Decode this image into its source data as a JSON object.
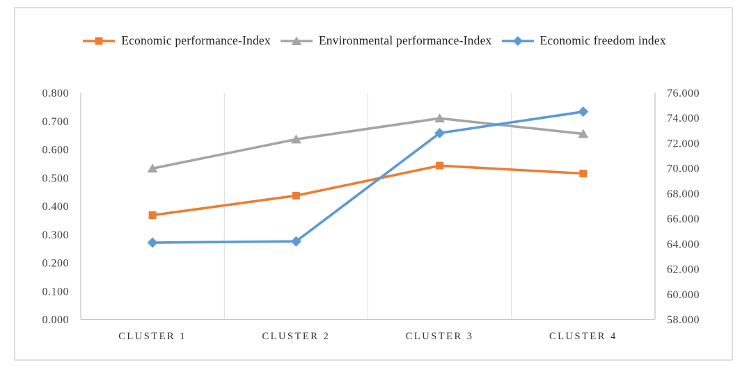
{
  "figure": {
    "background": "#FFFFFF",
    "border_color": "#DEDEDE"
  },
  "chart_data": {
    "type": "line",
    "title": "",
    "xlabel": "",
    "ylabel_left": "",
    "ylabel_right": "",
    "legend_position": "top",
    "grid": {
      "vertical": true,
      "horizontal": false
    },
    "categories": [
      "CLUSTER 1",
      "CLUSTER 2",
      "CLUSTER 3",
      "CLUSTER 4"
    ],
    "series": [
      {
        "name": "Economic performance-Index",
        "axis": "left",
        "color": "#ED7D31",
        "marker": "square",
        "values": [
          0.368,
          0.437,
          0.543,
          0.515
        ]
      },
      {
        "name": "Environmental performance-Index",
        "axis": "left",
        "color": "#A5A5A5",
        "marker": "triangle",
        "values": [
          0.533,
          0.636,
          0.71,
          0.655
        ]
      },
      {
        "name": "Economic freedom index",
        "axis": "right",
        "color": "#5B9BD5",
        "marker": "diamond",
        "values": [
          64.1,
          64.2,
          72.8,
          74.5
        ]
      }
    ],
    "axes": {
      "left": {
        "min": 0,
        "max": 0.8,
        "step": 0.1,
        "ticks": [
          "0.000",
          "0.100",
          "0.200",
          "0.300",
          "0.400",
          "0.500",
          "0.600",
          "0.700",
          "0.800"
        ]
      },
      "right": {
        "min": 58,
        "max": 76,
        "step": 2,
        "ticks": [
          "58.000",
          "60.000",
          "62.000",
          "64.000",
          "66.000",
          "68.000",
          "70.000",
          "72.000",
          "74.000",
          "76.000"
        ]
      }
    },
    "colors": {
      "gridline": "#D9D9D9",
      "axis_line": "#C6C6C6",
      "tick_text": "#3F3F3F",
      "legend_text": "#1F1F1F"
    }
  }
}
